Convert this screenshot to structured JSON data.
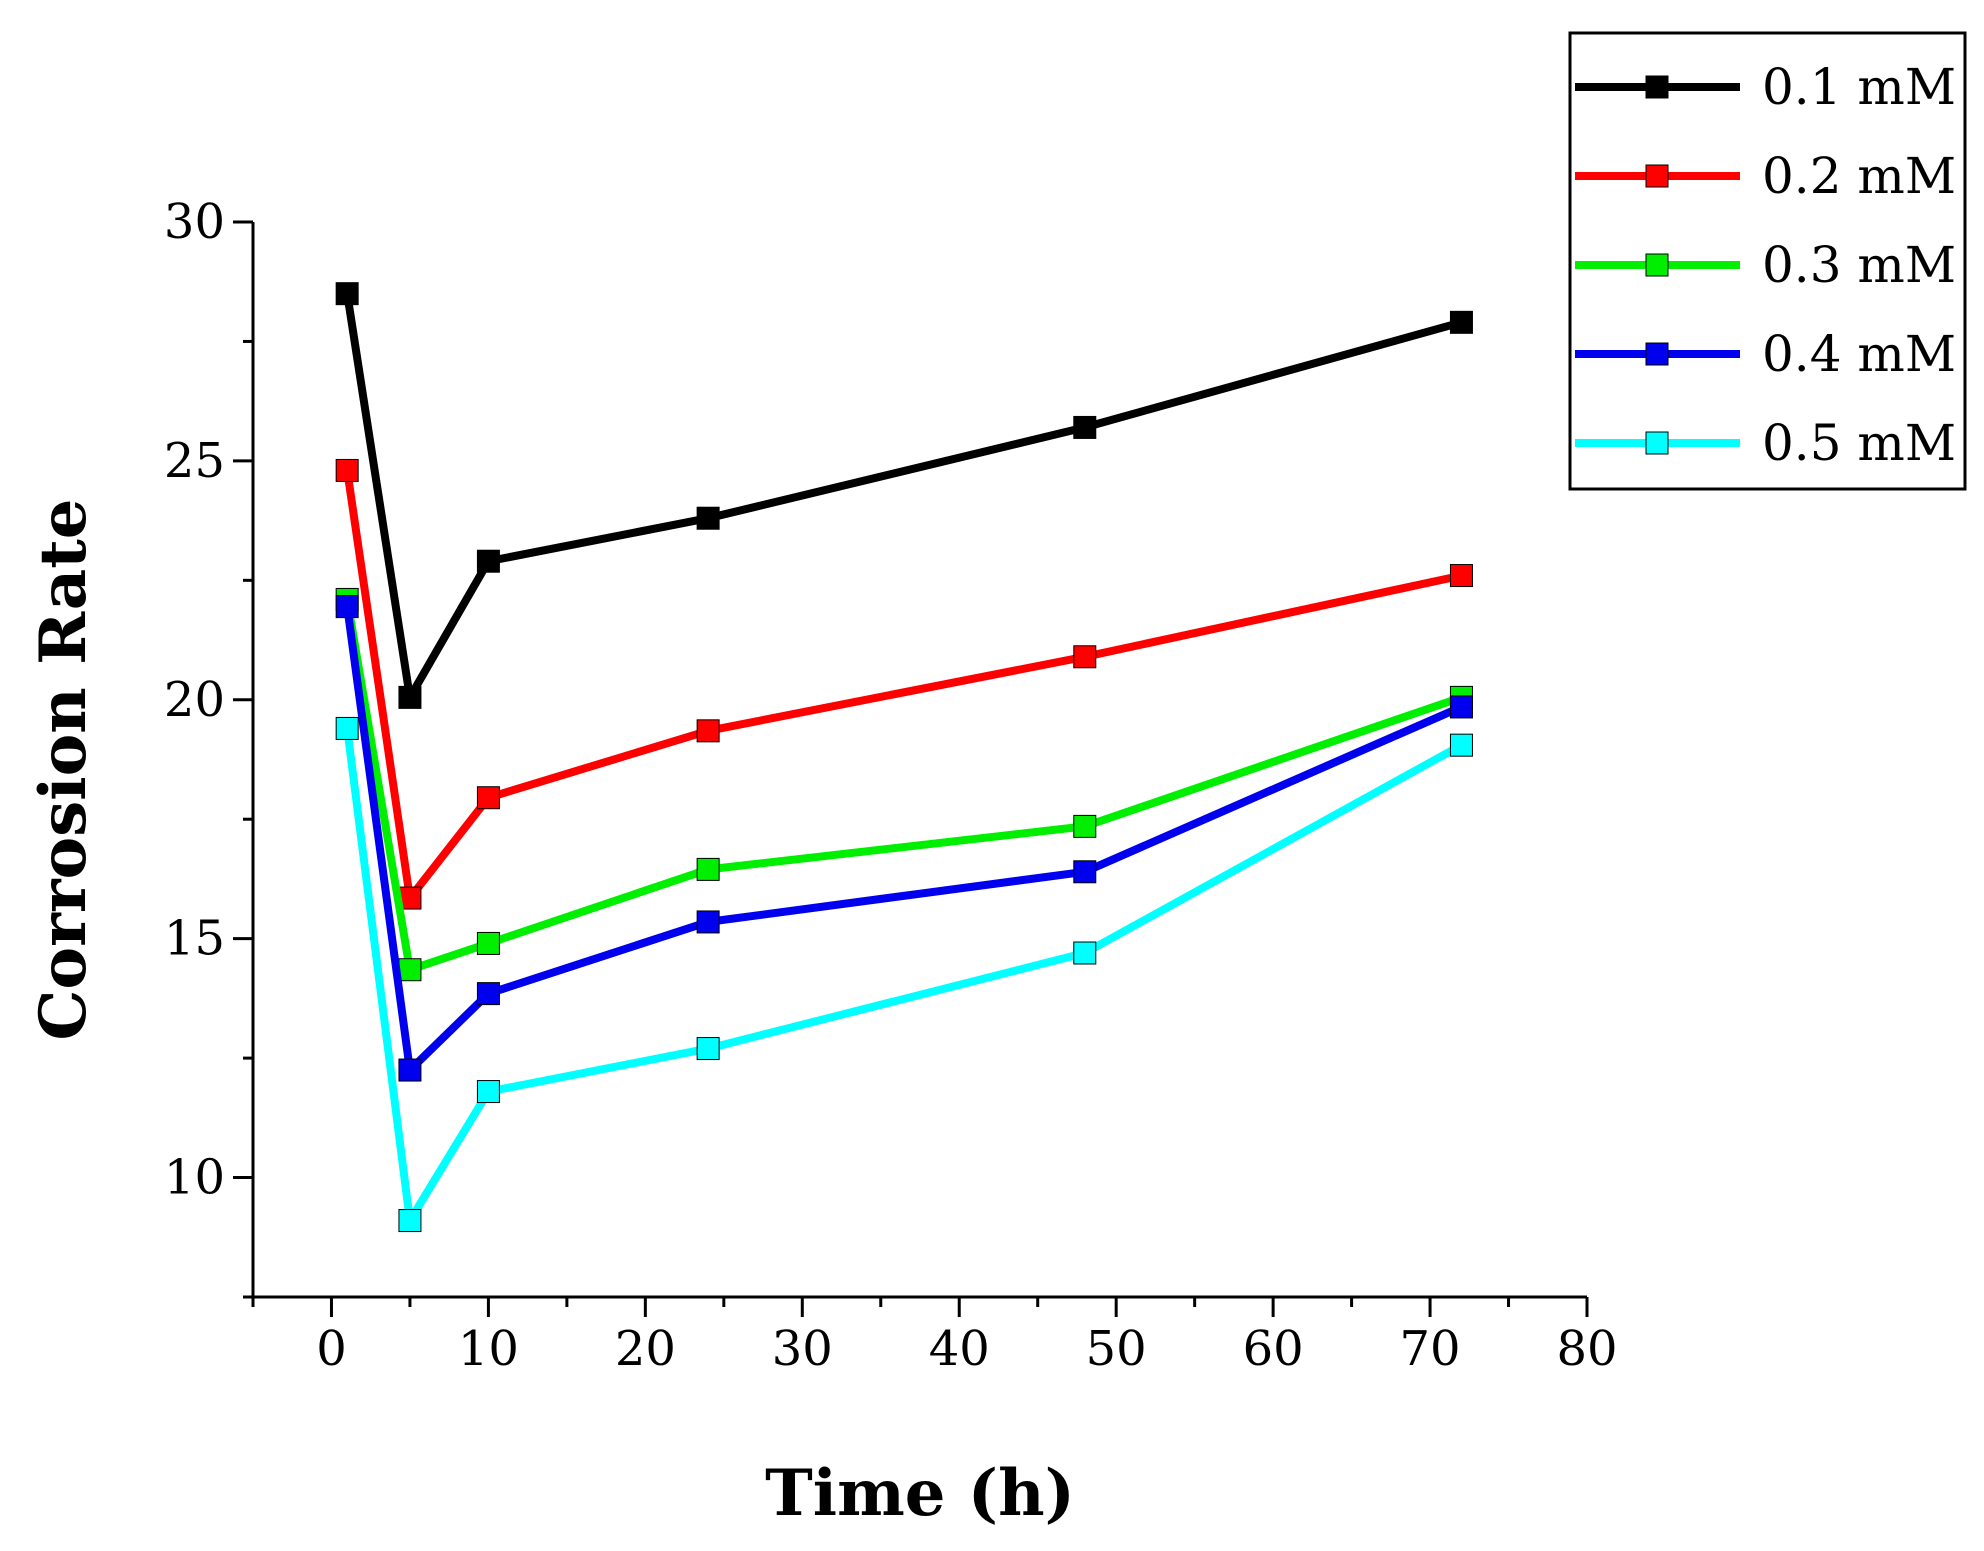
{
  "chart_data": {
    "type": "line",
    "title": "",
    "xlabel": "Time (h)",
    "ylabel": "Corrosion Rate",
    "xlim": [
      -5,
      80
    ],
    "ylim": [
      7.5,
      30
    ],
    "xticks": [
      0,
      10,
      20,
      30,
      40,
      50,
      60,
      70,
      80
    ],
    "yticks": [
      10,
      15,
      20,
      25,
      30
    ],
    "x": [
      1,
      5,
      10,
      24,
      48,
      72
    ],
    "legend_position": "top-right",
    "marker": "square",
    "series": [
      {
        "name": "0.1 mM",
        "color": "#000000",
        "values": [
          28.5,
          20.05,
          22.9,
          23.8,
          25.7,
          27.9
        ]
      },
      {
        "name": "0.2 mM",
        "color": "#ff0000",
        "values": [
          24.8,
          15.85,
          17.95,
          19.35,
          20.9,
          22.6
        ]
      },
      {
        "name": "0.3 mM",
        "color": "#00ee00",
        "values": [
          22.1,
          14.35,
          14.9,
          16.45,
          17.35,
          20.05
        ]
      },
      {
        "name": "0.4 mM",
        "color": "#0000ee",
        "values": [
          21.95,
          12.25,
          13.85,
          15.35,
          16.4,
          19.85
        ]
      },
      {
        "name": "0.5 mM",
        "color": "#00ffff",
        "values": [
          19.4,
          9.1,
          11.8,
          12.7,
          14.7,
          19.05
        ]
      }
    ]
  }
}
